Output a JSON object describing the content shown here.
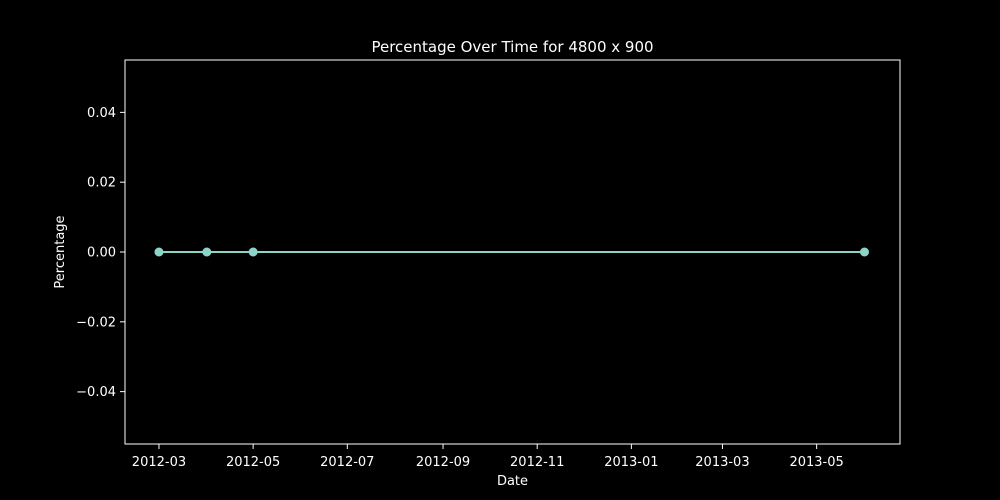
{
  "chart_data": {
    "type": "line",
    "title": "Percentage Over Time for 4800 x 900",
    "xlabel": "Date",
    "ylabel": "Percentage",
    "x_axis_type": "date",
    "xlim": [
      "2012-02-08",
      "2013-06-24"
    ],
    "ylim": [
      -0.055,
      0.055
    ],
    "x_ticks": [
      "2012-03-01",
      "2012-05-01",
      "2012-07-01",
      "2012-09-01",
      "2012-11-01",
      "2013-01-01",
      "2013-03-01",
      "2013-05-01"
    ],
    "x_tick_labels": [
      "2012-03",
      "2012-05",
      "2012-07",
      "2012-09",
      "2012-11",
      "2013-01",
      "2013-03",
      "2013-05"
    ],
    "y_ticks": [
      -0.04,
      -0.02,
      0.0,
      0.02,
      0.04
    ],
    "y_tick_labels": [
      "−0.04",
      "−0.02",
      "0.00",
      "0.02",
      "0.04"
    ],
    "grid": false,
    "legend": "none",
    "series": [
      {
        "x": [
          "2012-03-01",
          "2012-04-01",
          "2012-05-01",
          "2013-06-01"
        ],
        "y": [
          0,
          0,
          0,
          0
        ],
        "marker": "circle"
      }
    ],
    "colors": {
      "background": "#000000",
      "foreground": "#ffffff",
      "series": "#8dd3c7"
    }
  }
}
